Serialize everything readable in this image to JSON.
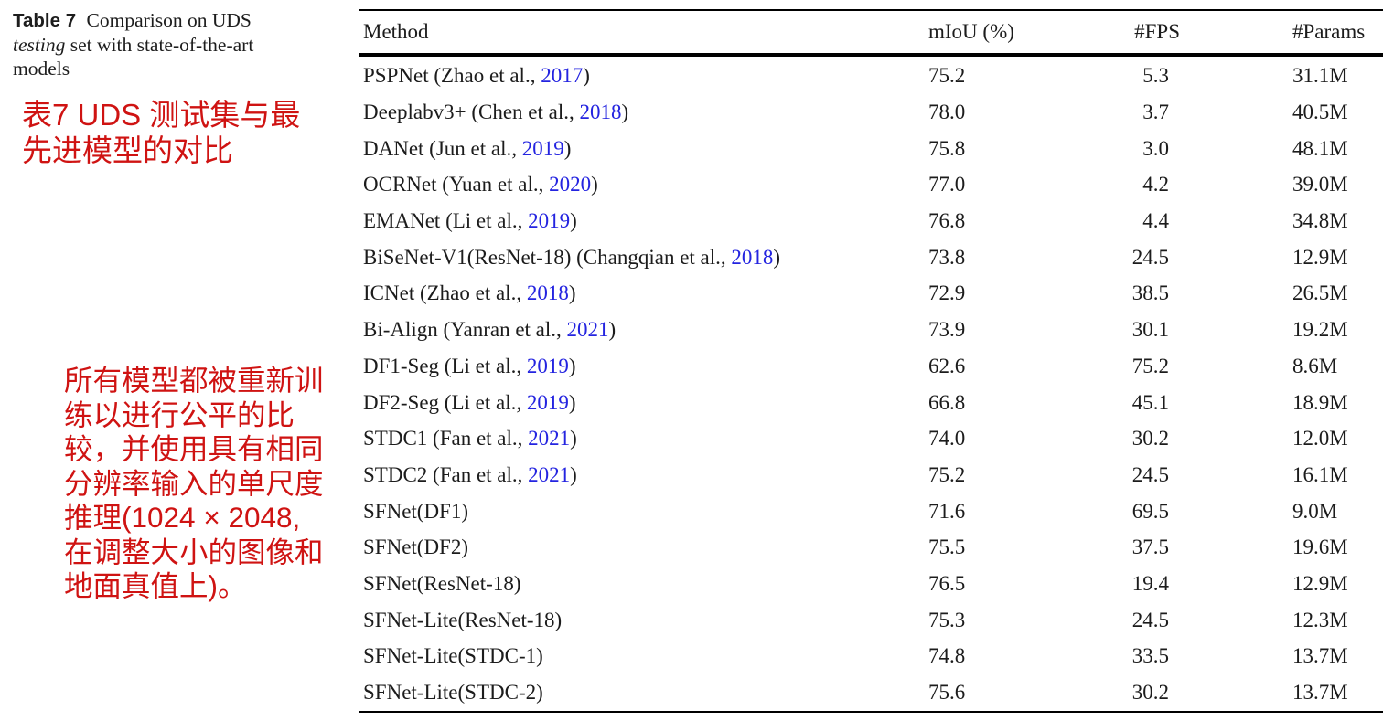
{
  "caption": {
    "line1_label": "Table 7",
    "line1_text": " Comparison on UDS",
    "line2_italic": "testing",
    "line2_text": " set with state-of-the-art",
    "line3_text": "models"
  },
  "translations": {
    "title_zh": "表7 UDS 测试集与最\n先进模型的对比",
    "note_zh": "所有模型都被重新训\n练以进行公平的比\n较，并使用具有相同\n分辨率输入的单尺度\n推理(1024 × 2048,\n在调整大小的图像和\n地面真值上)。"
  },
  "table": {
    "headers": {
      "method": "Method",
      "miou": "mIoU (%)",
      "fps": "#FPS",
      "params": "#Params"
    },
    "rows": [
      {
        "pre": "PSPNet (Zhao et al., ",
        "year": "2017",
        "post": ")",
        "miou": "75.2",
        "fps": "5.3",
        "params": "31.1M"
      },
      {
        "pre": "Deeplabv3+ (Chen et al., ",
        "year": "2018",
        "post": ")",
        "miou": "78.0",
        "fps": "3.7",
        "params": "40.5M"
      },
      {
        "pre": "DANet (Jun et al., ",
        "year": "2019",
        "post": ")",
        "miou": "75.8",
        "fps": "3.0",
        "params": "48.1M"
      },
      {
        "pre": "OCRNet (Yuan et al., ",
        "year": "2020",
        "post": ")",
        "miou": "77.0",
        "fps": "4.2",
        "params": "39.0M"
      },
      {
        "pre": "EMANet (Li et al., ",
        "year": "2019",
        "post": ")",
        "miou": "76.8",
        "fps": "4.4",
        "params": "34.8M"
      },
      {
        "pre": "BiSeNet-V1(ResNet-18) (Changqian et al., ",
        "year": "2018",
        "post": ")",
        "miou": "73.8",
        "fps": "24.5",
        "params": "12.9M"
      },
      {
        "pre": "ICNet (Zhao et al., ",
        "year": "2018",
        "post": ")",
        "miou": "72.9",
        "fps": "38.5",
        "params": "26.5M"
      },
      {
        "pre": "Bi-Align (Yanran et al., ",
        "year": "2021",
        "post": ")",
        "miou": "73.9",
        "fps": "30.1",
        "params": "19.2M"
      },
      {
        "pre": "DF1-Seg (Li et al., ",
        "year": "2019",
        "post": ")",
        "miou": "62.6",
        "fps": "75.2",
        "params": "8.6M"
      },
      {
        "pre": "DF2-Seg (Li et al., ",
        "year": "2019",
        "post": ")",
        "miou": "66.8",
        "fps": "45.1",
        "params": "18.9M"
      },
      {
        "pre": "STDC1 (Fan et al., ",
        "year": "2021",
        "post": ")",
        "miou": "74.0",
        "fps": "30.2",
        "params": "12.0M"
      },
      {
        "pre": "STDC2 (Fan et al., ",
        "year": "2021",
        "post": ")",
        "miou": "75.2",
        "fps": "24.5",
        "params": "16.1M"
      },
      {
        "pre": "SFNet(DF1)",
        "year": "",
        "post": "",
        "miou": "71.6",
        "fps": "69.5",
        "params": "9.0M"
      },
      {
        "pre": "SFNet(DF2)",
        "year": "",
        "post": "",
        "miou": "75.5",
        "fps": "37.5",
        "params": "19.6M"
      },
      {
        "pre": "SFNet(ResNet-18)",
        "year": "",
        "post": "",
        "miou": "76.5",
        "fps": "19.4",
        "params": "12.9M"
      },
      {
        "pre": "SFNet-Lite(ResNet-18)",
        "year": "",
        "post": "",
        "miou": "75.3",
        "fps": "24.5",
        "params": "12.3M"
      },
      {
        "pre": "SFNet-Lite(STDC-1)",
        "year": "",
        "post": "",
        "miou": "74.8",
        "fps": "33.5",
        "params": "13.7M"
      },
      {
        "pre": "SFNet-Lite(STDC-2)",
        "year": "",
        "post": "",
        "miou": "75.6",
        "fps": "30.2",
        "params": "13.7M"
      }
    ]
  },
  "colors": {
    "annotation_red": "#cf1312",
    "citation_blue": "#2424e0",
    "rule_black": "#000000"
  }
}
